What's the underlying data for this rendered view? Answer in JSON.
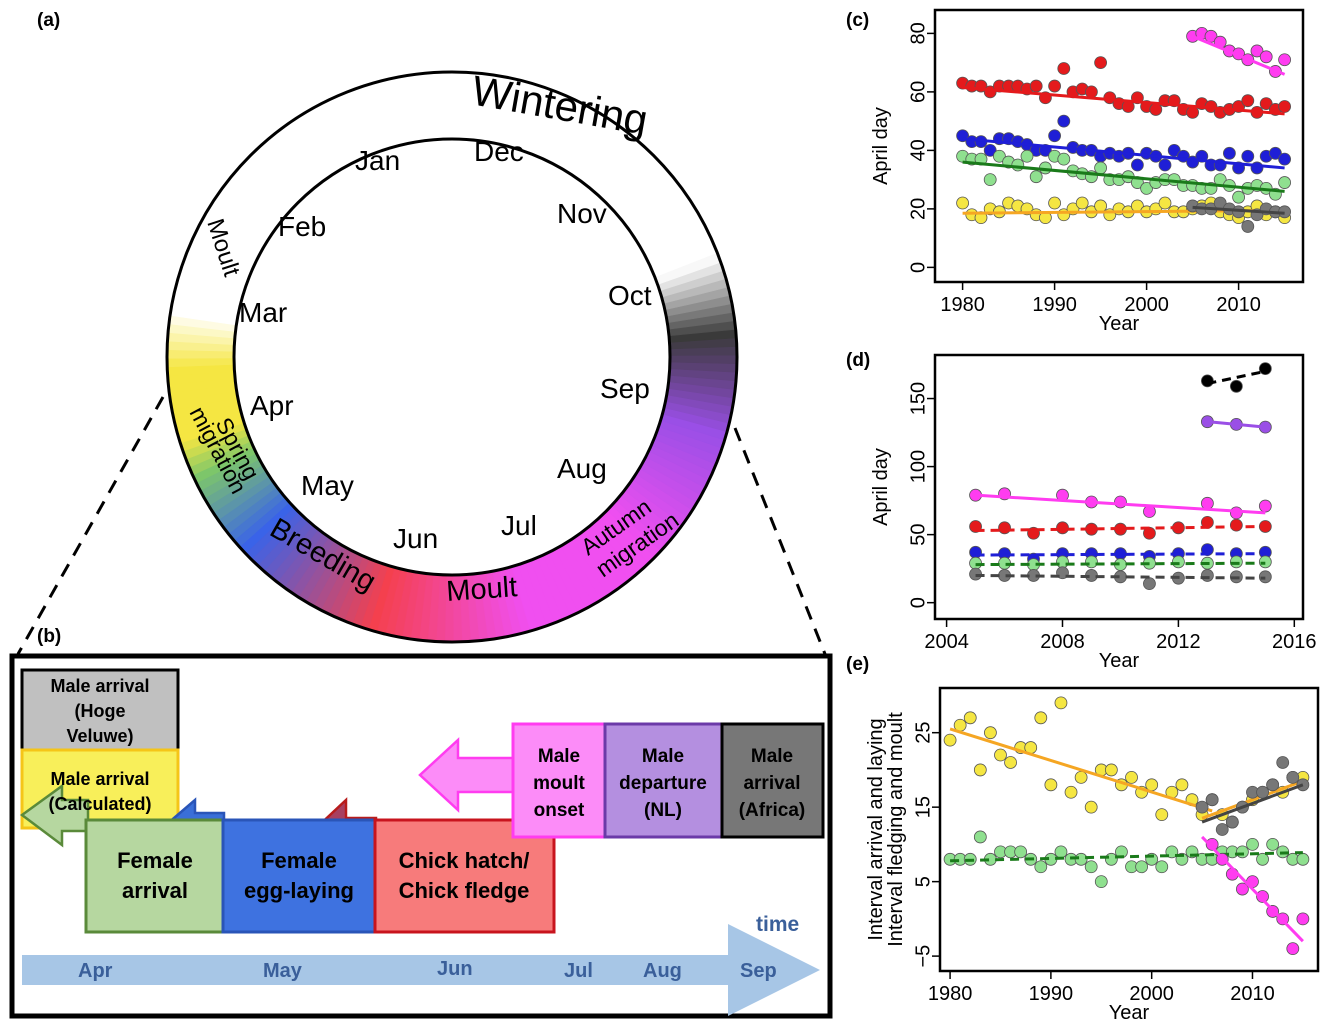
{
  "panel_a": {
    "label": "(a)",
    "ring_labels": {
      "wintering": "Wintering",
      "moult_top": "Moult",
      "spring_migration": [
        "Spring",
        "migration"
      ],
      "breeding": "Breeding",
      "moult_bottom": "Moult",
      "autumn_migration": [
        "Autumn",
        "migration"
      ]
    },
    "months": [
      "Jan",
      "Dec",
      "Nov",
      "Oct",
      "Sep",
      "Aug",
      "Jul",
      "Jun",
      "May",
      "Apr",
      "Mar",
      "Feb"
    ],
    "colors": {
      "spring": "#f5e642",
      "green": "#7dc66a",
      "breeding": "#3a63e8",
      "red": "#f4404e",
      "moult": "#f04ff0",
      "autumn": "#9a4fe6",
      "dark": "#3a3a3a"
    }
  },
  "panel_b": {
    "label": "(b)",
    "boxes": {
      "male_arrival_hv": [
        "Male arrival",
        "(Hoge",
        "Veluwe)"
      ],
      "male_arrival_calc": [
        "Male arrival",
        "(Calculated)"
      ],
      "female_arrival": [
        "Female",
        "arrival"
      ],
      "female_egg": [
        "Female",
        "egg-laying"
      ],
      "chick": [
        "Chick hatch/",
        "Chick fledge"
      ],
      "male_moult": [
        "Male",
        "moult",
        "onset"
      ],
      "male_departure": [
        "Male",
        "departure",
        "(NL)"
      ],
      "male_arrival_africa": [
        "Male",
        "arrival",
        "(Africa)"
      ]
    },
    "time_label": "time",
    "timeline_months": [
      "Apr",
      "May",
      "Jun",
      "Jul",
      "Aug",
      "Sep"
    ]
  },
  "chart_data": [
    {
      "panel": "(c)",
      "type": "scatter",
      "xlabel": "Year",
      "ylabel": "April day",
      "xlim": [
        1977,
        2017
      ],
      "ylim": [
        -5,
        88
      ],
      "xticks": [
        1980,
        1990,
        2000,
        2010
      ],
      "yticks": [
        0,
        20,
        40,
        60,
        80
      ],
      "series": [
        {
          "color": "#e41a1c",
          "x": [
            1980,
            1981,
            1982,
            1983,
            1984,
            1985,
            1986,
            1987,
            1988,
            1989,
            1990,
            1991,
            1992,
            1993,
            1994,
            1995,
            1996,
            1997,
            1998,
            1999,
            2000,
            2001,
            2002,
            2003,
            2004,
            2005,
            2006,
            2007,
            2008,
            2009,
            2010,
            2011,
            2012,
            2013,
            2014,
            2015
          ],
          "y": [
            63,
            62,
            62,
            60,
            62,
            62,
            62,
            61,
            62,
            58,
            62,
            68,
            60,
            61,
            60,
            70,
            58,
            56,
            55,
            58,
            55,
            54,
            57,
            57,
            54,
            53,
            56,
            55,
            53,
            54,
            55,
            57,
            53,
            56,
            54,
            55
          ],
          "trend": {
            "x": [
              1980,
              2015
            ],
            "y": [
              61.5,
              52.5
            ],
            "dash": false
          }
        },
        {
          "color": "#1f1fd6",
          "x": [
            1980,
            1981,
            1982,
            1983,
            1984,
            1985,
            1986,
            1987,
            1988,
            1989,
            1990,
            1991,
            1992,
            1993,
            1994,
            1995,
            1996,
            1997,
            1998,
            1999,
            2000,
            2001,
            2002,
            2003,
            2004,
            2005,
            2006,
            2007,
            2008,
            2009,
            2010,
            2011,
            2012,
            2013,
            2014,
            2015
          ],
          "y": [
            45,
            43,
            43,
            40,
            44,
            44,
            43,
            42,
            40,
            40,
            45,
            50,
            41,
            40,
            40,
            38,
            39,
            38,
            39,
            35,
            39,
            38,
            35,
            40,
            38,
            36,
            38,
            35,
            35,
            39,
            34,
            38,
            34,
            38,
            39,
            37
          ],
          "trend": {
            "x": [
              1980,
              2015
            ],
            "y": [
              44,
              34
            ],
            "dash": false
          }
        },
        {
          "color": "#8fe08f",
          "x": [
            1980,
            1981,
            1982,
            1983,
            1984,
            1985,
            1986,
            1987,
            1988,
            1989,
            1990,
            1991,
            1992,
            1993,
            1994,
            1995,
            1996,
            1997,
            1998,
            1999,
            2000,
            2001,
            2002,
            2003,
            2004,
            2005,
            2006,
            2007,
            2008,
            2009,
            2010,
            2011,
            2012,
            2013,
            2014,
            2015
          ],
          "y": [
            38,
            37,
            37,
            30,
            38,
            36,
            35,
            38,
            31,
            34,
            38,
            37,
            33,
            32,
            31,
            34,
            30,
            30,
            31,
            29,
            27,
            29,
            30,
            30,
            28,
            28,
            27,
            27,
            30,
            28,
            24,
            27,
            28,
            27,
            25,
            29
          ],
          "trend": {
            "x": [
              1980,
              2015
            ],
            "y": [
              36,
              26
            ],
            "dash": false
          },
          "trend_color": "#1a7a1a"
        },
        {
          "color": "#f5e642",
          "x": [
            1980,
            1981,
            1982,
            1983,
            1984,
            1985,
            1986,
            1987,
            1988,
            1989,
            1990,
            1991,
            1992,
            1993,
            1994,
            1995,
            1996,
            1997,
            1998,
            1999,
            2000,
            2001,
            2002,
            2003,
            2004,
            2005,
            2006,
            2007,
            2008,
            2009,
            2010,
            2011,
            2012,
            2013,
            2014,
            2015
          ],
          "y": [
            22,
            18,
            17,
            20,
            19,
            22,
            21,
            20,
            18,
            17,
            22,
            18,
            20,
            22,
            19,
            21,
            18,
            20,
            19,
            21,
            19,
            20,
            22,
            19,
            19,
            20,
            21,
            22,
            19,
            18,
            17,
            19,
            21,
            18,
            19,
            17
          ],
          "trend": {
            "x": [
              1980,
              2015
            ],
            "y": [
              18.5,
              19.5
            ],
            "dash": false
          },
          "trend_color": "#f5a623"
        },
        {
          "color": "#777777",
          "x": [
            2005,
            2006,
            2007,
            2008,
            2009,
            2010,
            2011,
            2012,
            2013,
            2014,
            2015
          ],
          "y": [
            21,
            20,
            20,
            22,
            20,
            19,
            14,
            18,
            20,
            19,
            19
          ],
          "trend": {
            "x": [
              2005,
              2015
            ],
            "y": [
              20.5,
              18.5
            ],
            "dash": false
          },
          "trend_color": "#444444"
        },
        {
          "color": "#ff3cf0",
          "x": [
            2005,
            2006,
            2007,
            2008,
            2009,
            2010,
            2011,
            2012,
            2013,
            2014,
            2015
          ],
          "y": [
            79,
            80,
            79,
            77,
            74,
            73,
            71,
            74,
            72,
            67,
            71
          ],
          "trend": {
            "x": [
              2005,
              2015
            ],
            "y": [
              79,
              66
            ],
            "dash": false
          }
        }
      ]
    },
    {
      "panel": "(d)",
      "type": "scatter",
      "xlabel": "Year",
      "ylabel": "April day",
      "xlim": [
        2003.6,
        2016.3
      ],
      "ylim": [
        -12,
        182
      ],
      "xticks": [
        2004,
        2008,
        2012,
        2016
      ],
      "yticks": [
        0,
        50,
        100,
        150
      ],
      "series": [
        {
          "color": "#000000",
          "x": [
            2013,
            2014,
            2015
          ],
          "y": [
            163,
            159,
            172
          ],
          "trend": {
            "x": [
              2013,
              2015
            ],
            "y": [
              161,
              170
            ],
            "dash": true
          }
        },
        {
          "color": "#9a4fe6",
          "x": [
            2013,
            2014,
            2015
          ],
          "y": [
            133,
            131,
            129
          ],
          "trend": {
            "x": [
              2013,
              2015
            ],
            "y": [
              133,
              129
            ],
            "dash": false
          }
        },
        {
          "color": "#ff3cf0",
          "x": [
            2005,
            2006,
            2008,
            2009,
            2010,
            2011,
            2013,
            2014,
            2015
          ],
          "y": [
            79,
            80,
            79,
            74,
            74,
            67,
            73,
            66,
            71
          ],
          "trend": {
            "x": [
              2005,
              2015
            ],
            "y": [
              79,
              66
            ],
            "dash": false
          }
        },
        {
          "color": "#e41a1c",
          "x": [
            2005,
            2006,
            2007,
            2008,
            2009,
            2010,
            2011,
            2012,
            2013,
            2014,
            2015
          ],
          "y": [
            56,
            55,
            51,
            55,
            54,
            54,
            51,
            55,
            59,
            57,
            56
          ],
          "trend": {
            "x": [
              2005,
              2015
            ],
            "y": [
              53,
              56
            ],
            "dash": true
          }
        },
        {
          "color": "#1f1fd6",
          "x": [
            2005,
            2006,
            2007,
            2008,
            2009,
            2010,
            2011,
            2012,
            2013,
            2014,
            2015
          ],
          "y": [
            37,
            36,
            32,
            36,
            36,
            36,
            34,
            36,
            39,
            36,
            37
          ],
          "trend": {
            "x": [
              2005,
              2015
            ],
            "y": [
              35,
              36
            ],
            "dash": true
          }
        },
        {
          "color": "#8fe08f",
          "x": [
            2005,
            2006,
            2007,
            2008,
            2009,
            2010,
            2011,
            2012,
            2013,
            2014,
            2015
          ],
          "y": [
            29,
            29,
            28,
            30,
            30,
            28,
            29,
            30,
            29,
            30,
            30
          ],
          "trend": {
            "x": [
              2005,
              2015
            ],
            "y": [
              28,
              29
            ],
            "dash": true
          },
          "trend_color": "#1a7a1a"
        },
        {
          "color": "#777777",
          "x": [
            2005,
            2006,
            2007,
            2008,
            2009,
            2010,
            2011,
            2012,
            2013,
            2014,
            2015
          ],
          "y": [
            21,
            20,
            20,
            22,
            20,
            19,
            14,
            18,
            20,
            19,
            19
          ],
          "trend": {
            "x": [
              2005,
              2015
            ],
            "y": [
              20,
              18
            ],
            "dash": true
          },
          "trend_color": "#444444"
        }
      ]
    },
    {
      "panel": "(e)",
      "type": "scatter",
      "xlabel": "Year",
      "ylabel": [
        "Interval fledging and moult",
        "Interval arrival and laying"
      ],
      "xlim": [
        1979,
        2016.5
      ],
      "ylim": [
        -7,
        31
      ],
      "xticks": [
        1980,
        1990,
        2000,
        2010
      ],
      "yticks": [
        -5,
        5,
        15,
        25
      ],
      "series": [
        {
          "color": "#f5e642",
          "x": [
            1980,
            1981,
            1982,
            1983,
            1984,
            1985,
            1986,
            1987,
            1988,
            1989,
            1990,
            1991,
            1992,
            1993,
            1994,
            1995,
            1996,
            1997,
            1998,
            1999,
            2000,
            2001,
            2002,
            2003,
            2004,
            2005,
            2006,
            2007,
            2008,
            2009,
            2010,
            2011,
            2012,
            2013,
            2014,
            2015
          ],
          "y": [
            24,
            26,
            27,
            20,
            25,
            22,
            21,
            23,
            23,
            27,
            18,
            29,
            17,
            19,
            15,
            20,
            20,
            18,
            19,
            17,
            18,
            14,
            17,
            18,
            16,
            14,
            16,
            14,
            13,
            15,
            16,
            17,
            18,
            17,
            19,
            19
          ],
          "trend": {
            "x": [
              1980,
              2006
            ],
            "y": [
              25.5,
              14.5
            ],
            "dash": false
          },
          "trend_color": "#f5a623"
        },
        {
          "color": "#f5e642",
          "trend_only": true,
          "x": [],
          "y": [],
          "trend": {
            "x": [
              2005,
              2015
            ],
            "y": [
              13.5,
              18.5
            ],
            "dash": false
          },
          "trend_color": "#f5a623"
        },
        {
          "color": "#777777",
          "x": [
            2005,
            2006,
            2007,
            2008,
            2009,
            2010,
            2011,
            2012,
            2013,
            2014,
            2015
          ],
          "y": [
            15,
            16,
            12,
            13,
            15,
            17,
            17,
            18,
            21,
            19,
            18
          ],
          "trend": {
            "x": [
              2005,
              2015
            ],
            "y": [
              13,
              18
            ],
            "dash": false
          },
          "trend_color": "#444444"
        },
        {
          "color": "#8fe08f",
          "x": [
            1980,
            1981,
            1982,
            1983,
            1984,
            1985,
            1986,
            1987,
            1988,
            1989,
            1990,
            1991,
            1992,
            1993,
            1994,
            1995,
            1996,
            1997,
            1998,
            1999,
            2000,
            2001,
            2002,
            2003,
            2004,
            2005,
            2006,
            2007,
            2008,
            2009,
            2010,
            2011,
            2012,
            2013,
            2014,
            2015
          ],
          "y": [
            8,
            8,
            8,
            11,
            8,
            9,
            9,
            9,
            8,
            7,
            8,
            9,
            8,
            8,
            7,
            5,
            8,
            9,
            7,
            7,
            8,
            7,
            9,
            8,
            9,
            8,
            8,
            9,
            9,
            9,
            10,
            8,
            10,
            9,
            8,
            8
          ],
          "trend": {
            "x": [
              1980,
              2015
            ],
            "y": [
              7.8,
              8.9
            ],
            "dash": true
          },
          "trend_color": "#1a7a1a"
        },
        {
          "color": "#ff3cf0",
          "x": [
            2006,
            2007,
            2008,
            2009,
            2010,
            2011,
            2012,
            2013,
            2014,
            2015
          ],
          "y": [
            10,
            8,
            6,
            4,
            5,
            3,
            1,
            0,
            -4,
            0
          ],
          "trend": {
            "x": [
              2005,
              2015
            ],
            "y": [
              11,
              -3
            ],
            "dash": false
          }
        }
      ]
    }
  ]
}
